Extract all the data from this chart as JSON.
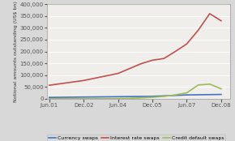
{
  "title": "",
  "ylabel": "Notional amounts outstanding (US$ bn)",
  "background_color": "#d8d8d8",
  "plot_background": "#f0eeea",
  "x_labels": [
    "Jun.01",
    "Dec.02",
    "Jun.04",
    "Dec.05",
    "Jun.07",
    "Dec.08"
  ],
  "x_ticks": [
    0,
    1.5,
    3.0,
    4.5,
    6.0,
    7.5
  ],
  "xlim": [
    -0.1,
    7.9
  ],
  "ylim": [
    0,
    400000
  ],
  "yticks": [
    0,
    50000,
    100000,
    150000,
    200000,
    250000,
    300000,
    350000,
    400000
  ],
  "grid_color": "#ffffff",
  "line_width": 1.2,
  "currency_x": [
    0,
    1.5,
    3.0,
    4.5,
    6.0,
    7.5
  ],
  "currency_y": [
    5500,
    7000,
    8500,
    10000,
    16000,
    18000
  ],
  "currency_color": "#4472c4",
  "currency_name": "Currency swaps",
  "interest_x": [
    0,
    1.5,
    3.0,
    4.0,
    4.5,
    5.0,
    5.5,
    6.0,
    6.5,
    7.0,
    7.5
  ],
  "interest_y": [
    57000,
    77000,
    107000,
    148000,
    163000,
    170000,
    200000,
    232000,
    290000,
    360000,
    330000
  ],
  "interest_color": "#c0504d",
  "interest_name": "Interest rate swaps",
  "cds_x": [
    0,
    1.5,
    3.0,
    3.5,
    4.0,
    4.5,
    5.0,
    5.5,
    6.0,
    6.5,
    7.0,
    7.5
  ],
  "cds_y": [
    0,
    0,
    500,
    1500,
    3500,
    6000,
    10000,
    16000,
    25000,
    58000,
    62000,
    42000
  ],
  "cds_color": "#9bbb59",
  "cds_name": "Credit default swaps",
  "legend_fontsize": 4.5,
  "tick_fontsize": 5.0,
  "ylabel_fontsize": 4.5
}
